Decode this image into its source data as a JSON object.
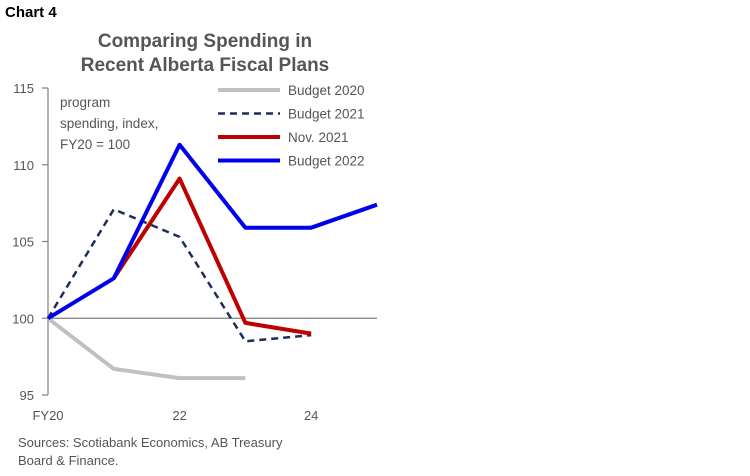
{
  "header": {
    "chart_label": "Chart 4",
    "title_line1": "Comparing Spending in",
    "title_line2": "Recent Alberta Fiscal Plans"
  },
  "note": {
    "line1": "program",
    "line2": "spending, index,",
    "line3": "FY20 = 100"
  },
  "source": {
    "line1": "Sources: Scotiabank Economics, AB Treasury",
    "line2": "Board & Finance."
  },
  "colors": {
    "budget2020": "#c0c0c0",
    "budget2021": "#1f2d5c",
    "nov2021": "#c00000",
    "budget2022": "#0000ee",
    "axis": "#7f7f7f",
    "text": "#555555"
  },
  "chart_data": {
    "type": "line",
    "title": "Comparing Spending in Recent Alberta Fiscal Plans",
    "ylabel": "program spending, index, FY20 = 100",
    "xlim": [
      2020,
      2025
    ],
    "ylim": [
      95,
      115
    ],
    "yticks": [
      95,
      100,
      105,
      110,
      115
    ],
    "xticks": [
      {
        "x": 2020,
        "label": "FY20"
      },
      {
        "x": 2022,
        "label": "22"
      },
      {
        "x": 2024,
        "label": "24"
      }
    ],
    "legend_position": "top-right",
    "series": [
      {
        "name": "Budget 2020",
        "style": "solid",
        "color": "#c0c0c0",
        "x": [
          2020,
          2021,
          2022,
          2023
        ],
        "values": [
          100,
          96.7,
          96.1,
          96.1
        ]
      },
      {
        "name": "Budget 2021",
        "style": "dashed",
        "color": "#1f2d5c",
        "x": [
          2020,
          2021,
          2022,
          2023,
          2024
        ],
        "values": [
          100,
          107.1,
          105.3,
          98.5,
          98.9
        ]
      },
      {
        "name": "Nov. 2021",
        "style": "solid",
        "color": "#c00000",
        "x": [
          2021,
          2022,
          2023,
          2024
        ],
        "values": [
          102.6,
          109.1,
          99.7,
          99.0
        ]
      },
      {
        "name": "Budget 2022",
        "style": "solid",
        "color": "#0000ee",
        "x": [
          2020,
          2021,
          2022,
          2023,
          2024,
          2025
        ],
        "values": [
          100,
          102.6,
          111.3,
          105.9,
          105.9,
          107.4
        ]
      }
    ]
  }
}
